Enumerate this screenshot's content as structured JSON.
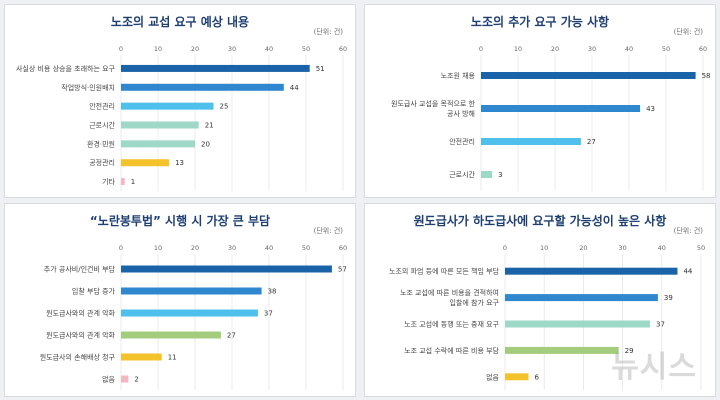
{
  "watermark": "뉴시스",
  "colors": [
    "#1a63a8",
    "#2f87cf",
    "#4fc0ec",
    "#9ed9c7",
    "#a3cd7c",
    "#f4c32c",
    "#f3b7c2"
  ],
  "chart_data": [
    {
      "type": "bar",
      "title": "노조의 교섭 요구 예상 내용",
      "unit": "(단위: 건)",
      "xlim": [
        0,
        60
      ],
      "ticks": [
        0,
        10,
        20,
        30,
        40,
        50,
        60
      ],
      "grid": true,
      "categories": [
        "사실상 비용 상승을 초래하는 요구",
        "작업방식·인원배치",
        "안전관리",
        "근로시간",
        "환경·민원",
        "공정관리",
        "기타"
      ],
      "values": [
        51,
        44,
        25,
        21,
        20,
        13,
        1
      ],
      "bar_colors": [
        "#1a63a8",
        "#2f87cf",
        "#4fc0ec",
        "#9ed9c7",
        "#9ed9c7",
        "#f4c32c",
        "#f3b7c2"
      ]
    },
    {
      "type": "bar",
      "title": "노조의 추가 요구 가능 사항",
      "unit": "(단위: 건)",
      "xlim": [
        0,
        60
      ],
      "ticks": [
        0,
        10,
        20,
        30,
        40,
        50,
        60
      ],
      "grid": true,
      "categories": [
        "노조원 채용",
        "원도급사 교섭을 목적으로 한|공사 방해",
        "안전관리",
        "근로시간"
      ],
      "values": [
        58,
        43,
        27,
        3
      ],
      "bar_colors": [
        "#1a63a8",
        "#2f87cf",
        "#4fc0ec",
        "#9ed9c7"
      ]
    },
    {
      "type": "bar",
      "title": "“노란봉투법” 시행 시 가장 큰 부담",
      "unit": "(단위: 건)",
      "xlim": [
        0,
        60
      ],
      "ticks": [
        0,
        10,
        20,
        30,
        40,
        50,
        60
      ],
      "grid": true,
      "categories": [
        "추가 공사비/인건비 부담",
        "입찰 부담 증가",
        "원도급사와의 관계 악화",
        "원도급사와의 관계 악화",
        "원도급사의 손해배상 청구",
        "없음"
      ],
      "values": [
        57,
        38,
        37,
        27,
        11,
        2
      ],
      "bar_colors": [
        "#1a63a8",
        "#2f87cf",
        "#4fc0ec",
        "#a3cd7c",
        "#f4c32c",
        "#f3b7c2"
      ]
    },
    {
      "type": "bar",
      "title": "원도급사가 하도급사에 요구할 가능성이 높은 사항",
      "unit": "(단위: 건)",
      "xlim": [
        0,
        50
      ],
      "ticks": [
        0,
        10,
        20,
        30,
        40,
        50
      ],
      "grid": true,
      "categories": [
        "노조의 파업 등에 따른 모든 책임 부담",
        "노조 교섭에 따른 비용을 견적하여|입찰에 참가 요구",
        "노조 교섭에 동행 또는 중재 요구",
        "노조 교섭 수락에 따른 비용 부담",
        "없음"
      ],
      "values": [
        44,
        39,
        37,
        29,
        6
      ],
      "bar_colors": [
        "#1a63a8",
        "#2f87cf",
        "#9ed9c7",
        "#a3cd7c",
        "#f4c32c"
      ]
    }
  ]
}
